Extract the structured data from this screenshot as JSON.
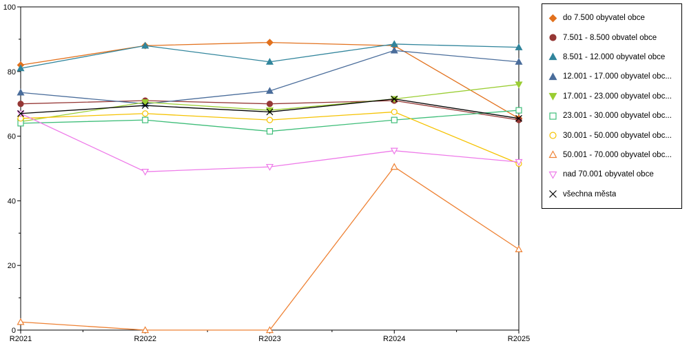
{
  "chart_data": {
    "type": "line",
    "title": "",
    "xlabel": "",
    "ylabel": "",
    "x": [
      "R2021",
      "R2022",
      "R2023",
      "R2024",
      "R2025"
    ],
    "ylim": [
      0,
      100
    ],
    "yticks": [
      0,
      20,
      40,
      60,
      80,
      100
    ],
    "y_minor_tick_step": 10,
    "grid": false,
    "legend_position": "right-outside",
    "series": [
      {
        "name": "do 7.500 obyvatel obce",
        "marker": "diamond",
        "fill": "solid",
        "color": "#e2711d",
        "values": [
          82,
          88,
          89,
          88,
          65.5
        ]
      },
      {
        "name": "7.501 - 8.500 obvatel obce",
        "marker": "circle",
        "fill": "solid",
        "color": "#953735",
        "values": [
          70,
          71,
          70,
          71,
          65
        ]
      },
      {
        "name": "8.501 - 12.000 obyvatel obce",
        "marker": "triangle-up",
        "fill": "solid",
        "color": "#31859c",
        "values": [
          81,
          88,
          83,
          88.5,
          87.5
        ]
      },
      {
        "name": "12.001 - 17.000 obyvatel obc...",
        "marker": "triangle-up",
        "fill": "solid",
        "color": "#4a6d9b",
        "values": [
          73.5,
          70,
          74,
          86.5,
          83
        ]
      },
      {
        "name": "17.001 - 23.000 obyvatel obc...",
        "marker": "triangle-down",
        "fill": "solid",
        "color": "#9acd32",
        "values": [
          64.5,
          70.5,
          68,
          71.5,
          76
        ]
      },
      {
        "name": "23.001 - 30.000 obyvatel obc...",
        "marker": "square",
        "fill": "open",
        "color": "#3dbd78",
        "values": [
          64,
          65,
          61.5,
          65,
          68
        ]
      },
      {
        "name": "30.001 - 50.000 obyvatel obc...",
        "marker": "circle",
        "fill": "open",
        "color": "#f5c200",
        "values": [
          65.5,
          67,
          65,
          67.5,
          51.5
        ]
      },
      {
        "name": "50.001 - 70.000 obyvatel obc...",
        "marker": "triangle-up",
        "fill": "open",
        "color": "#ee8133",
        "values": [
          2.5,
          0,
          0,
          50.5,
          25
        ]
      },
      {
        "name": "nad 70.001 obyvatel obce",
        "marker": "triangle-down",
        "fill": "open",
        "color": "#ee7ae9",
        "values": [
          67,
          49,
          50.5,
          55.5,
          52
        ]
      },
      {
        "name": "všechna města",
        "marker": "x",
        "fill": "line",
        "color": "#000000",
        "values": [
          67,
          69.5,
          67.5,
          71.5,
          65.5
        ]
      }
    ]
  },
  "axis": {
    "x_labels": [
      "R2021",
      "R2022",
      "R2023",
      "R2024",
      "R2025"
    ],
    "y_labels": [
      "0",
      "20",
      "40",
      "60",
      "80",
      "100"
    ]
  }
}
